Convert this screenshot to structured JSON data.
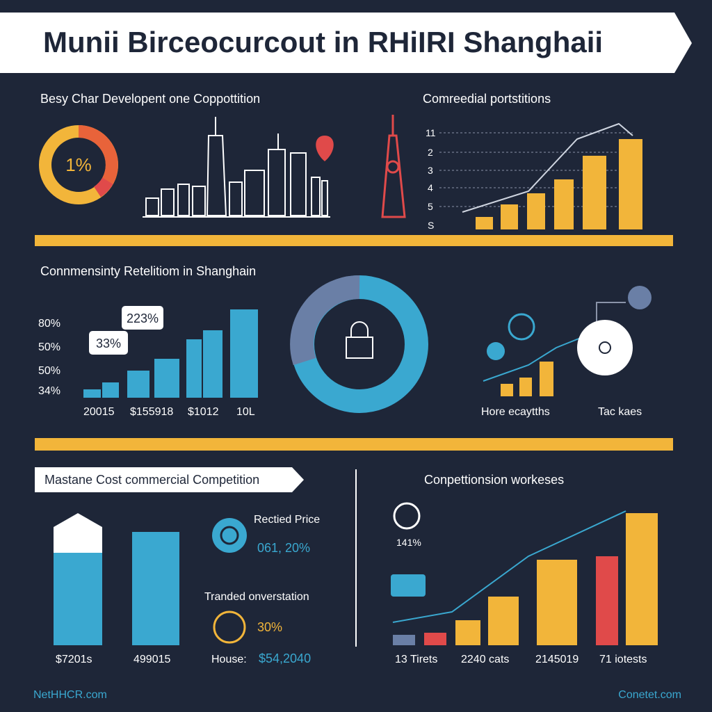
{
  "header": {
    "title": "Munii Birceocurcout in RHiIRI Shanghaii"
  },
  "top_left": {
    "title": "Besy Char Developent one Coppottition",
    "donut_label": "1%"
  },
  "top_right": {
    "title": "Comreedial portstitions",
    "axis_labels": [
      "11",
      "2",
      "3",
      "4",
      "5",
      "S"
    ]
  },
  "middle": {
    "title": "Connmensinty Retelitiom in Shanghain",
    "axis_labels": [
      "80%",
      "50%",
      "50%",
      "34%"
    ],
    "bubbles": [
      "223%",
      "33%"
    ],
    "x_labels": [
      "20015",
      "$155918",
      "$1012",
      "10L"
    ],
    "right_labels": [
      "Hore ecaytths",
      "Tac kaes"
    ]
  },
  "bottom_left": {
    "title": "Mastane Cost commercial Competition",
    "bar_labels": [
      "$7201s",
      "499015"
    ],
    "price_title": "Rectied Price",
    "price_value": "061, 20%",
    "trend_title": "Tranded onverstation",
    "trend_value": "30%",
    "house_label": "House:",
    "house_value": "$54,2040"
  },
  "bottom_right": {
    "title": "Conpettionsion workeses",
    "badge": "141%",
    "x_labels": [
      "13 Tirets",
      "2240 cats",
      "2145019",
      "71 iotests"
    ]
  },
  "footer": {
    "left": "NetHHCR.com",
    "right": "Conetet.com"
  }
}
